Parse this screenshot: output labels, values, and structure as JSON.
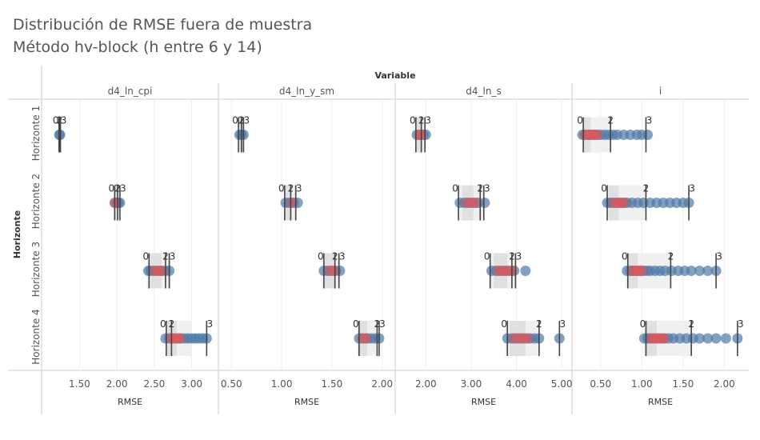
{
  "title": "Distribución de RMSE fuera de muestra",
  "subtitle": "Método hv-block (h entre 6 y 14)",
  "colors": {
    "point_default": "#4e79a7",
    "point_highlight": "#e15759",
    "band_outer": "#f0f0f0",
    "band_inner": "#e0e0e0",
    "marker_line": "#444444",
    "grid": "#eeeeee",
    "divider": "#cccccc",
    "text": "#555555",
    "label_text": "#333333"
  },
  "chart_data": {
    "type": "scatter",
    "column_header": "Variable",
    "row_header": "Horizonte",
    "x_axis_title": "RMSE",
    "columns": [
      {
        "name": "d4_ln_cpi",
        "xlim": [
          1.1,
          3.25
        ],
        "ticks": [
          1.5,
          2.0,
          2.5,
          3.0
        ],
        "tick_labels": [
          "1.50",
          "2.00",
          "2.50",
          "3.00"
        ]
      },
      {
        "name": "d4_ln_y_sm",
        "xlim": [
          0.45,
          2.05
        ],
        "ticks": [
          0.5,
          1.0,
          1.5,
          2.0
        ],
        "tick_labels": [
          "0.50",
          "1.00",
          "1.50",
          "2.00"
        ]
      },
      {
        "name": "d4_ln_s",
        "xlim": [
          1.5,
          5.05
        ],
        "ticks": [
          2.0,
          3.0,
          4.0,
          5.0
        ],
        "tick_labels": [
          "2.00",
          "3.00",
          "4.00",
          "5.00"
        ]
      },
      {
        "name": "i",
        "xlim": [
          0.25,
          2.2
        ],
        "ticks": [
          0.5,
          1.0,
          1.5,
          2.0
        ],
        "tick_labels": [
          "0.50",
          "1.00",
          "1.50",
          "2.00"
        ]
      }
    ],
    "rows": [
      "Horizonte 1",
      "Horizonte 2",
      "Horizonte 3",
      "Horizonte 4"
    ],
    "marker_labels": [
      "0",
      "2",
      "3"
    ],
    "cells": [
      [
        {
          "points": [
            1.23,
            1.24
          ],
          "red": [],
          "band_outer": [
            1.22,
            1.25
          ],
          "band_inner": [
            1.225,
            1.245
          ],
          "markers": [
            1.225,
            1.235,
            1.245
          ]
        },
        {
          "points": [
            0.58,
            0.6,
            0.62
          ],
          "red": [],
          "band_outer": [
            0.56,
            0.63
          ],
          "band_inner": [
            0.58,
            0.61
          ],
          "markers": [
            0.57,
            0.6,
            0.62
          ]
        },
        {
          "points": [
            1.8,
            1.88,
            1.95,
            2.0
          ],
          "red": [
            1.85,
            1.9
          ],
          "band_outer": [
            1.78,
            2.0
          ],
          "band_inner": [
            1.8,
            1.92
          ],
          "markers": [
            1.78,
            1.9,
            1.98
          ]
        },
        {
          "points": [
            0.28,
            0.31,
            0.35,
            0.38,
            0.42,
            0.46,
            0.5,
            0.55,
            0.6,
            0.65,
            0.7,
            0.78,
            0.86,
            0.94,
            1.0,
            1.07
          ],
          "red": [
            0.31,
            0.35,
            0.38,
            0.42,
            0.46
          ],
          "band_outer": [
            0.28,
            0.62
          ],
          "band_inner": [
            0.29,
            0.38
          ],
          "markers": [
            0.29,
            0.62,
            1.05
          ]
        }
      ],
      [
        {
          "points": [
            1.97,
            2.0,
            2.02,
            2.04
          ],
          "red": [
            1.98
          ],
          "band_outer": [
            1.96,
            2.04
          ],
          "band_inner": [
            1.97,
            2.01
          ],
          "markers": [
            1.97,
            2.01,
            2.04
          ]
        },
        {
          "points": [
            1.04,
            1.08,
            1.12,
            1.16
          ],
          "red": [
            1.1
          ],
          "band_outer": [
            1.02,
            1.15
          ],
          "band_inner": [
            1.04,
            1.1
          ],
          "markers": [
            1.03,
            1.09,
            1.14
          ]
        },
        {
          "points": [
            2.75,
            2.85,
            2.95,
            3.05,
            3.15,
            3.3
          ],
          "red": [
            2.9,
            3.0,
            3.1
          ],
          "band_outer": [
            2.72,
            3.28
          ],
          "band_inner": [
            2.8,
            3.05
          ],
          "markers": [
            2.72,
            3.2,
            3.28
          ]
        },
        {
          "points": [
            0.58,
            0.62,
            0.66,
            0.7,
            0.74,
            0.78,
            0.82,
            0.88,
            0.95,
            1.02,
            1.1,
            1.18,
            1.26,
            1.34,
            1.42,
            1.5,
            1.57
          ],
          "red": [
            0.66,
            0.7,
            0.74,
            0.78
          ],
          "band_outer": [
            0.58,
            1.05
          ],
          "band_inner": [
            0.6,
            0.72
          ],
          "markers": [
            0.58,
            1.05,
            1.57
          ]
        }
      ],
      [
        {
          "points": [
            2.42,
            2.45,
            2.5,
            2.55,
            2.6,
            2.65,
            2.7
          ],
          "red": [
            2.5,
            2.55,
            2.6
          ],
          "band_outer": [
            2.4,
            2.72
          ],
          "band_inner": [
            2.45,
            2.6
          ],
          "markers": [
            2.43,
            2.65,
            2.7
          ]
        },
        {
          "points": [
            1.42,
            1.46,
            1.5,
            1.54,
            1.58
          ],
          "red": [
            1.48,
            1.52
          ],
          "band_outer": [
            1.4,
            1.58
          ],
          "band_inner": [
            1.43,
            1.53
          ],
          "markers": [
            1.42,
            1.53,
            1.57
          ]
        },
        {
          "points": [
            3.45,
            3.55,
            3.65,
            3.75,
            3.85,
            3.95,
            4.2
          ],
          "red": [
            3.6,
            3.7,
            3.8,
            3.9
          ],
          "band_outer": [
            3.4,
            4.0
          ],
          "band_inner": [
            3.5,
            3.8
          ],
          "markers": [
            3.42,
            3.9,
            3.98
          ]
        },
        {
          "points": [
            0.82,
            0.86,
            0.9,
            0.94,
            0.98,
            1.02,
            1.06,
            1.1,
            1.16,
            1.22,
            1.28,
            1.36,
            1.44,
            1.52,
            1.6,
            1.7,
            1.8,
            1.9
          ],
          "red": [
            0.88,
            0.92,
            0.96,
            1.0
          ],
          "band_outer": [
            0.8,
            1.35
          ],
          "band_inner": [
            0.83,
            0.95
          ],
          "markers": [
            0.83,
            1.35,
            1.9
          ]
        }
      ],
      [
        {
          "points": [
            2.65,
            2.7,
            2.75,
            2.8,
            2.85,
            2.9,
            2.95,
            3.0,
            3.05,
            3.1,
            3.15,
            3.2
          ],
          "red": [
            2.72,
            2.76,
            2.8,
            2.84
          ],
          "band_outer": [
            2.65,
            3.0
          ],
          "band_inner": [
            2.67,
            2.8
          ],
          "markers": [
            2.66,
            2.73,
            3.2
          ]
        },
        {
          "points": [
            1.77,
            1.81,
            1.85,
            1.89,
            1.93,
            1.97
          ],
          "red": [
            1.8,
            1.84
          ],
          "band_outer": [
            1.75,
            1.95
          ],
          "band_inner": [
            1.77,
            1.85
          ],
          "markers": [
            1.77,
            1.95,
            1.97
          ]
        },
        {
          "points": [
            3.8,
            3.9,
            4.0,
            4.1,
            4.2,
            4.3,
            4.4,
            4.5,
            4.95
          ],
          "red": [
            3.95,
            4.05,
            4.15,
            4.25
          ],
          "band_outer": [
            3.75,
            4.5
          ],
          "band_inner": [
            3.85,
            4.2
          ],
          "markers": [
            3.8,
            4.5,
            4.95
          ]
        },
        {
          "points": [
            1.03,
            1.07,
            1.11,
            1.15,
            1.19,
            1.23,
            1.27,
            1.32,
            1.38,
            1.46,
            1.54,
            1.62,
            1.7,
            1.8,
            1.9,
            2.02,
            2.16
          ],
          "red": [
            1.11,
            1.15,
            1.19,
            1.23,
            1.27
          ],
          "band_outer": [
            1.02,
            1.6
          ],
          "band_inner": [
            1.04,
            1.18
          ],
          "markers": [
            1.05,
            1.6,
            2.16
          ]
        }
      ]
    ]
  }
}
